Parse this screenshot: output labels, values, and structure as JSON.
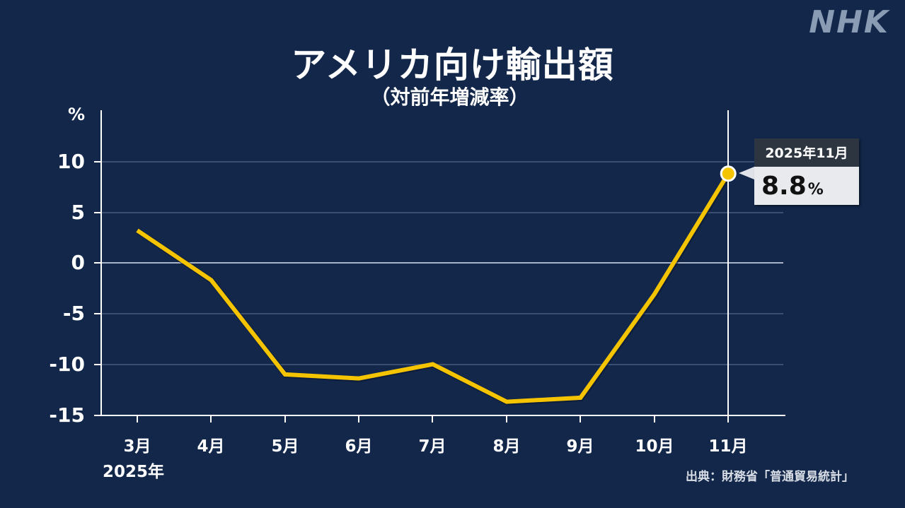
{
  "header": {
    "logo": "NHK",
    "title": "アメリカ向け輸出額",
    "subtitle": "（対前年増減率）"
  },
  "axis": {
    "y_unit": "%",
    "y_ticks": [
      "10",
      "5",
      "0",
      "-5",
      "-10",
      "-15"
    ],
    "x_ticks": [
      "3月",
      "4月",
      "5月",
      "6月",
      "7月",
      "8月",
      "9月",
      "10月",
      "11月"
    ],
    "x_year_label": "2025年"
  },
  "callout": {
    "date": "2025年11月",
    "value": "8.8",
    "unit": "%"
  },
  "source": "出典：財務省「普通貿易統計」",
  "colors": {
    "background": "#12274a",
    "line": "#f5c400",
    "gridline": "#3a4f72",
    "zero_line": "#a9b3c6",
    "axis": "#ffffff",
    "logo": "#8a9bb4"
  },
  "chart_data": {
    "type": "line",
    "title": "アメリカ向け輸出額",
    "subtitle": "（対前年増減率）",
    "xlabel": "2025年",
    "ylabel": "%",
    "categories": [
      "3月",
      "4月",
      "5月",
      "6月",
      "7月",
      "8月",
      "9月",
      "10月",
      "11月"
    ],
    "series": [
      {
        "name": "アメリカ向け輸出額 対前年増減率",
        "values": [
          3.2,
          -1.7,
          -11.0,
          -11.4,
          -10.0,
          -13.7,
          -13.3,
          -3.1,
          8.8
        ]
      }
    ],
    "ylim": [
      -15,
      12
    ],
    "yticks": [
      10,
      5,
      0,
      -5,
      -10,
      -15
    ],
    "grid": true,
    "highlight": {
      "category": "11月",
      "label": "2025年11月",
      "value": 8.8,
      "unit": "%"
    },
    "source": "出典：財務省「普通貿易統計」"
  }
}
